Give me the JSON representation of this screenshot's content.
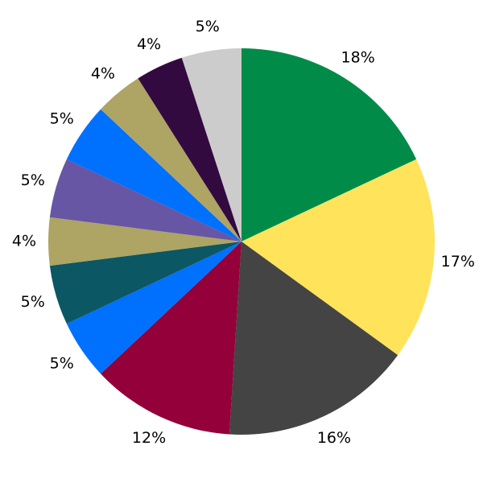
{
  "chart_data": {
    "type": "pie",
    "values": [
      18,
      17,
      16,
      12,
      5,
      5,
      4,
      5,
      5,
      4,
      4,
      5
    ],
    "value_labels": [
      "18%",
      "17%",
      "16%",
      "12%",
      "5%",
      "5%",
      "4%",
      "5%",
      "5%",
      "4%",
      "4%",
      "5%"
    ],
    "colors": [
      "#008c48",
      "#ffe35a",
      "#444444",
      "#93003a",
      "#0070ff",
      "#0b5763",
      "#aea463",
      "#6756a3",
      "#0070ff",
      "#aea463",
      "#330a40",
      "#cccccc"
    ],
    "start_angle": 90,
    "direction": "clockwise"
  }
}
